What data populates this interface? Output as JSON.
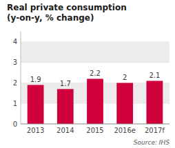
{
  "chart_data": {
    "type": "bar",
    "title": "Real private consumption",
    "subtitle": "(y-on-y, % change)",
    "categories": [
      "2013",
      "2014",
      "2015",
      "2016e",
      "2017f"
    ],
    "values": [
      1.9,
      1.7,
      2.2,
      2.0,
      2.1
    ],
    "color": "#d0003c",
    "ylim": [
      0,
      4.5
    ],
    "yticks": [
      0,
      1,
      2,
      3,
      4
    ],
    "grid": true,
    "data_labels": true,
    "annotations": [
      "Source: IHS"
    ]
  }
}
